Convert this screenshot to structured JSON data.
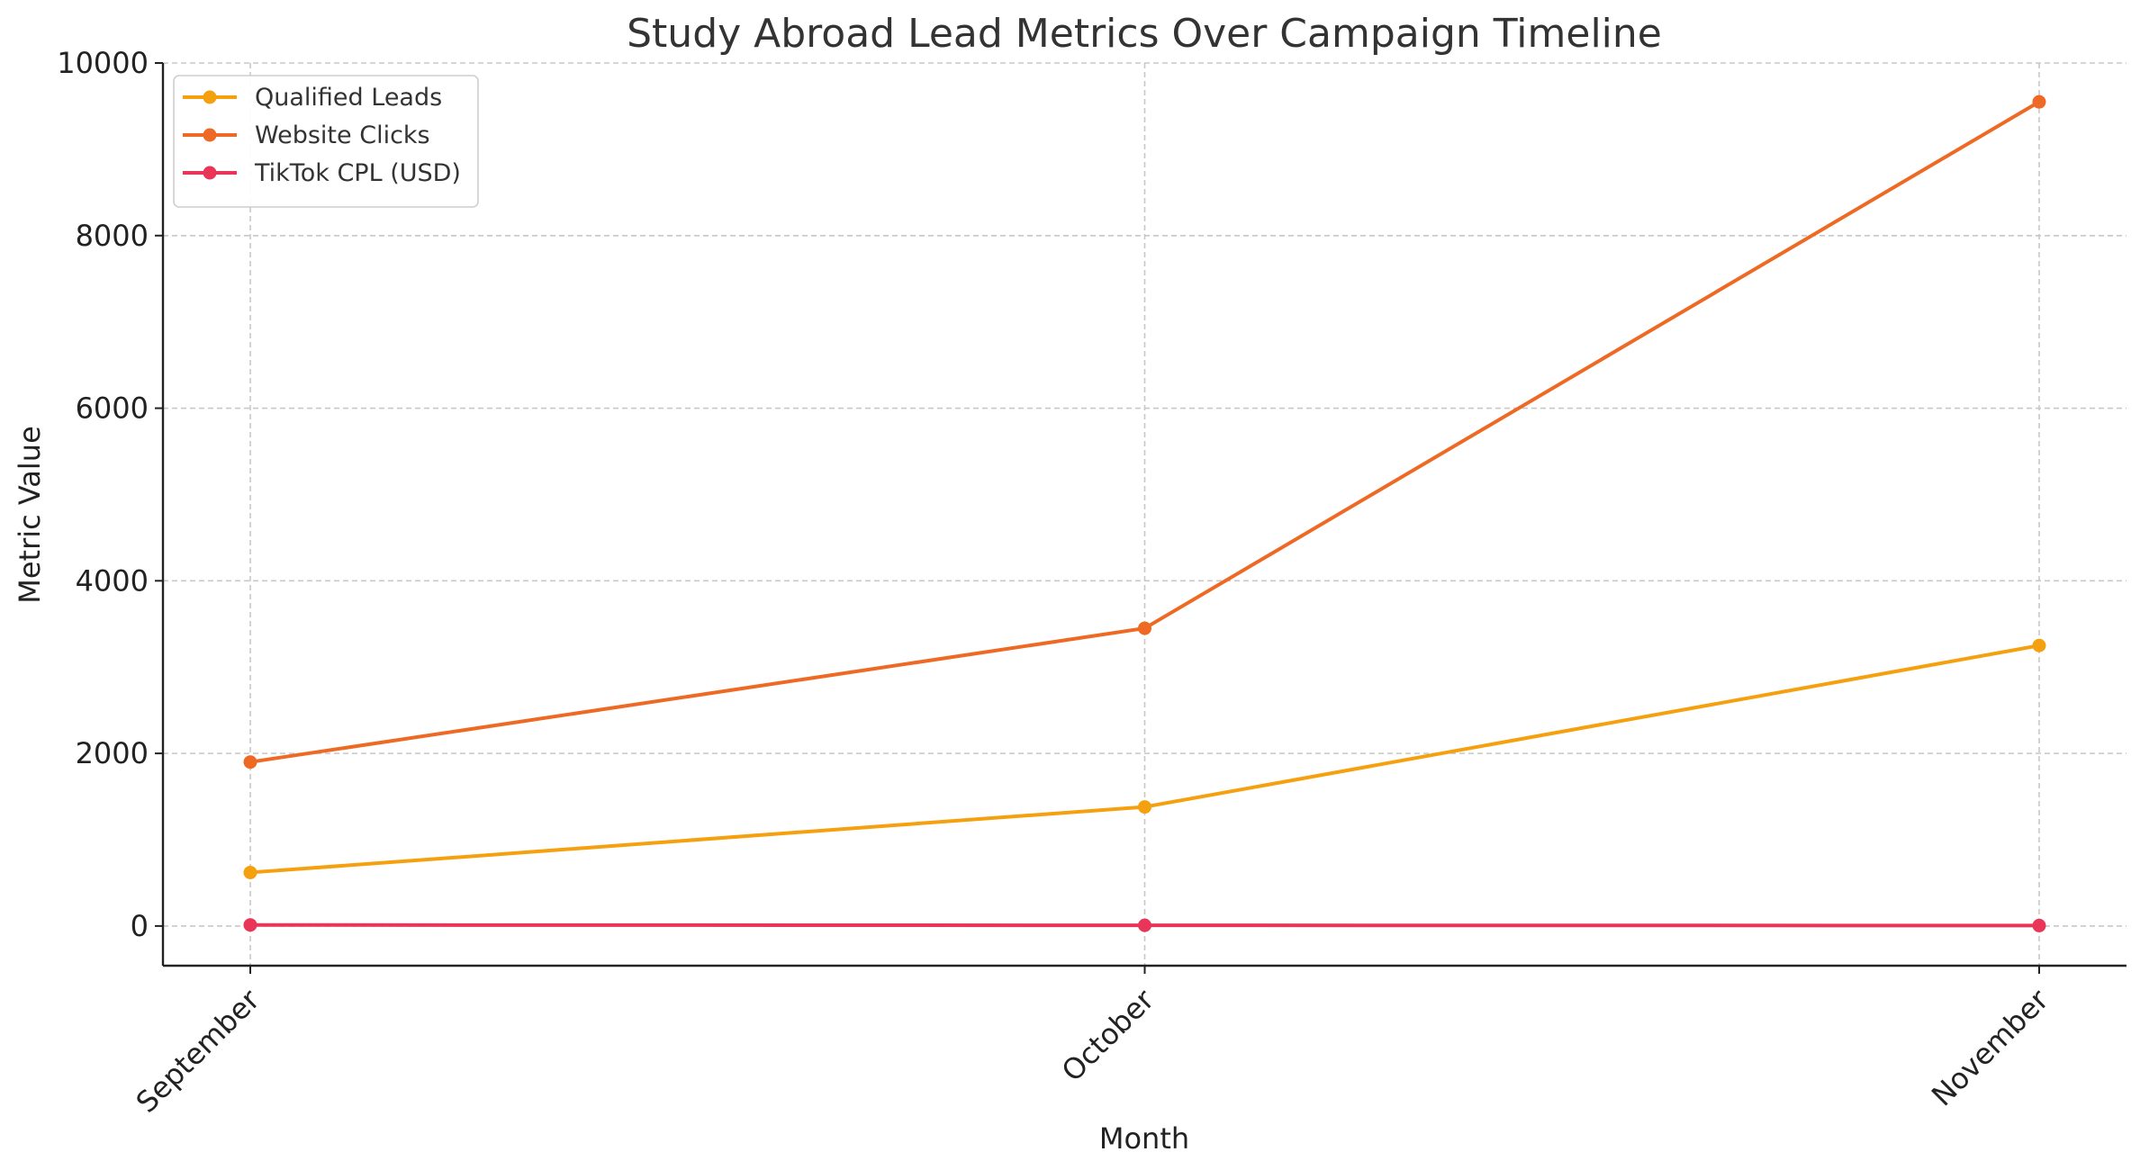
{
  "chart_data": {
    "type": "line",
    "title": "Study Abroad Lead Metrics Over Campaign Timeline",
    "xlabel": "Month",
    "ylabel": "Metric Value",
    "categories": [
      "September",
      "October",
      "November"
    ],
    "ylim": [
      -460,
      10000
    ],
    "yticks": [
      0,
      2000,
      4000,
      6000,
      8000,
      10000
    ],
    "grid": true,
    "legend_position": "top-left",
    "series": [
      {
        "name": "Qualified Leads",
        "color": "#F5A00F",
        "values": [
          620,
          1380,
          3250
        ]
      },
      {
        "name": "Website Clicks",
        "color": "#EE6A24",
        "values": [
          1900,
          3450,
          9550
        ]
      },
      {
        "name": "TikTok CPL (USD)",
        "color": "#E93558",
        "values": [
          12,
          8,
          5
        ]
      }
    ]
  }
}
